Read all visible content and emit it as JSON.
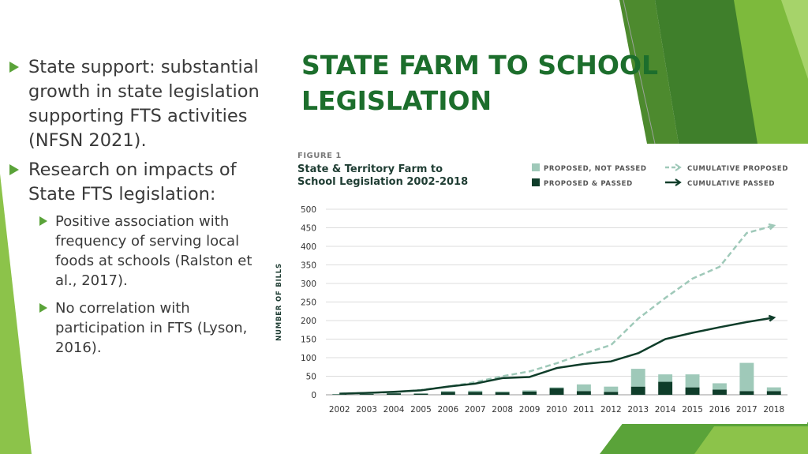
{
  "slide": {
    "title": "STATE FARM TO SCHOOL LEGISLATION",
    "bullets": [
      "State support: substantial growth in state legislation supporting FTS activities (NFSN 2021).",
      "Research on impacts of State FTS legislation:"
    ],
    "sub_bullets": [
      "Positive association with frequency of serving local foods at schools (Ralston et al., 2017).",
      "No correlation with participation in FTS (Lyson, 2016)."
    ]
  },
  "colors": {
    "title": "#1c6e2c",
    "bullet_marker": "#5aa339",
    "proposed_not_passed": "#9fc9b9",
    "proposed_passed": "#0f3d2a",
    "cumulative_proposed": "#9fc9b9",
    "cumulative_passed": "#0f3d2a"
  },
  "chart_data": {
    "type": "bar",
    "figure_label": "FIGURE 1",
    "title_line1": "State & Territory Farm to",
    "title_line2": "School Legislation 2002-2018",
    "ylabel": "NUMBER OF BILLS",
    "xlabel": "",
    "ylim": [
      0,
      500
    ],
    "yticks": [
      0,
      50,
      100,
      150,
      200,
      250,
      300,
      350,
      400,
      450,
      500
    ],
    "grid": true,
    "legend_position": "top-right",
    "categories": [
      "2002",
      "2003",
      "2004",
      "2005",
      "2006",
      "2007",
      "2008",
      "2009",
      "2010",
      "2011",
      "2012",
      "2013",
      "2014",
      "2015",
      "2016",
      "2017",
      "2018"
    ],
    "series": [
      {
        "name": "PROPOSED, NOT PASSED",
        "kind": "bar",
        "stack": "total",
        "values": [
          1,
          2,
          1,
          1,
          2,
          3,
          2,
          3,
          2,
          18,
          14,
          48,
          20,
          35,
          17,
          76,
          10
        ]
      },
      {
        "name": "PROPOSED & PASSED",
        "kind": "bar",
        "stack": "total",
        "values": [
          1,
          2,
          4,
          3,
          8,
          8,
          7,
          9,
          18,
          10,
          8,
          22,
          35,
          20,
          14,
          10,
          10
        ]
      },
      {
        "name": "CUMULATIVE PROPOSED",
        "kind": "line",
        "dashed": true,
        "values": [
          3,
          5,
          7,
          13,
          22,
          34,
          50,
          63,
          85,
          111,
          134,
          205,
          261,
          313,
          345,
          436,
          456
        ]
      },
      {
        "name": "CUMULATIVE PASSED",
        "kind": "line",
        "dashed": false,
        "values": [
          3,
          5,
          8,
          12,
          22,
          30,
          45,
          48,
          72,
          83,
          90,
          112,
          150,
          167,
          182,
          196,
          208
        ]
      }
    ]
  }
}
